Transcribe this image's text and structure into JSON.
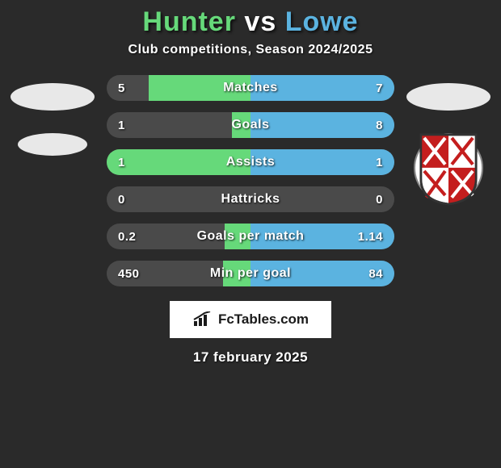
{
  "title": {
    "player1": "Hunter",
    "vs": "vs",
    "player2": "Lowe",
    "color1": "#66d97a",
    "color2": "#5bb3e0"
  },
  "subtitle": "Club competitions, Season 2024/2025",
  "background_color": "#2a2a2a",
  "track_color": "#4a4a4a",
  "left_fill_color": "#66d97a",
  "right_fill_color": "#5bb3e0",
  "max_half_width_pct": 100,
  "stats": [
    {
      "label": "Matches",
      "left_value": "5",
      "right_value": "7",
      "left_pct": 71,
      "right_pct": 100
    },
    {
      "label": "Goals",
      "left_value": "1",
      "right_value": "8",
      "left_pct": 13,
      "right_pct": 100
    },
    {
      "label": "Assists",
      "left_value": "1",
      "right_value": "1",
      "left_pct": 100,
      "right_pct": 100
    },
    {
      "label": "Hattricks",
      "left_value": "0",
      "right_value": "0",
      "left_pct": 0,
      "right_pct": 0
    },
    {
      "label": "Goals per match",
      "left_value": "0.2",
      "right_value": "1.14",
      "left_pct": 18,
      "right_pct": 100
    },
    {
      "label": "Min per goal",
      "left_value": "450",
      "right_value": "84",
      "left_pct": 19,
      "right_pct": 100
    }
  ],
  "branding_text": "FcTables.com",
  "date": "17 february 2025",
  "crest": {
    "bg": "#ffffff",
    "red": "#c41e1e",
    "border": "#333333"
  }
}
